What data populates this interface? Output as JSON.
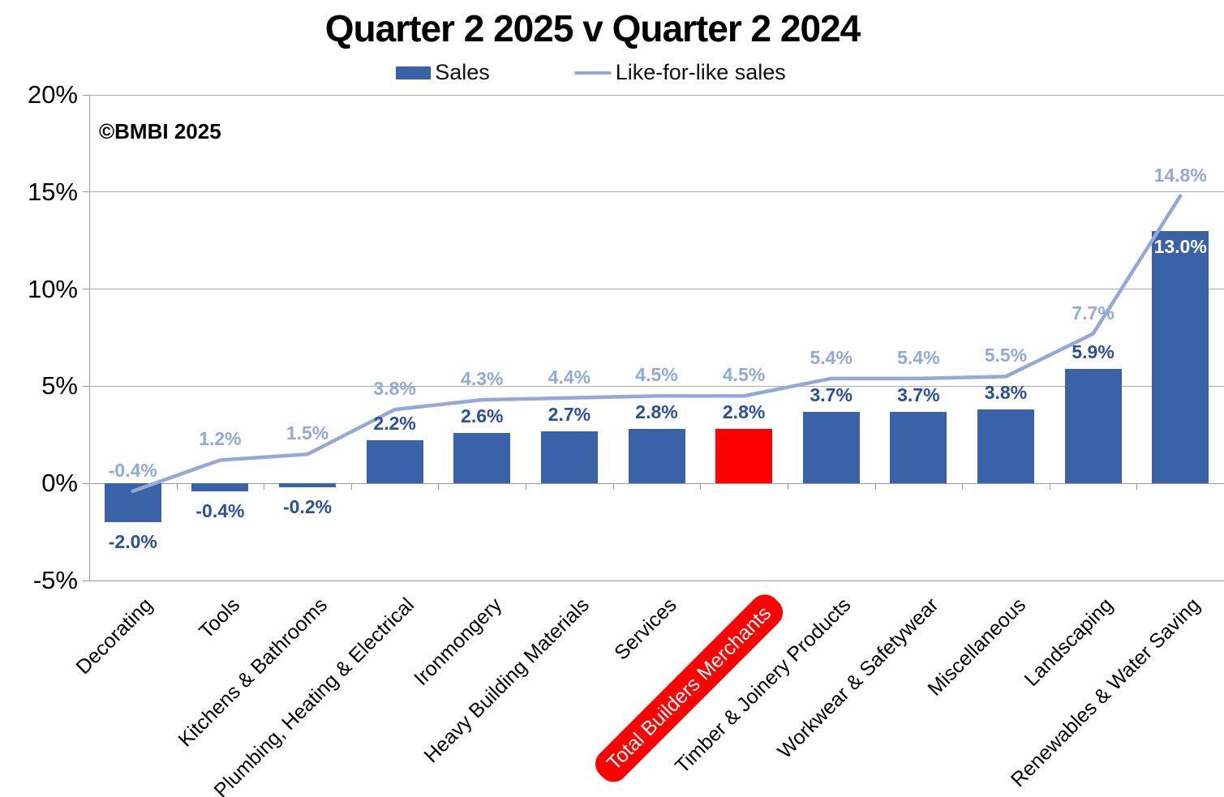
{
  "title": "Quarter 2 2025 v Quarter 2 2024",
  "copyright": "©BMBI 2025",
  "legend": [
    {
      "label": "Sales",
      "swatch": "bar",
      "color": "#3A62A8"
    },
    {
      "label": "Like-for-like sales",
      "swatch": "line",
      "color": "#94A9D9"
    }
  ],
  "chart_data": {
    "type": "bar",
    "title": "Quarter 2 2025 v Quarter 2 2024",
    "categories": [
      "Decorating",
      "Tools",
      "Kitchens & Bathrooms",
      "Plumbing, Heating & Electrical",
      "Ironmongery",
      "Heavy Building Materials",
      "Services",
      "Total Builders Merchants",
      "Timber & Joinery Products",
      "Workwear & Safetywear",
      "Miscellaneous",
      "Landscaping",
      "Renewables & Water Saving"
    ],
    "series": [
      {
        "name": "Sales",
        "type": "bar",
        "color": "#3A62A8",
        "label_color": "#2B4F9E",
        "values": [
          -2.0,
          -0.4,
          -0.2,
          2.2,
          2.6,
          2.7,
          2.8,
          2.8,
          3.7,
          3.7,
          3.8,
          5.9,
          13.0
        ],
        "labels": [
          "-2.0%",
          "-0.4%",
          "-0.2%",
          "2.2%",
          "2.6%",
          "2.7%",
          "2.8%",
          "2.8%",
          "3.7%",
          "3.7%",
          "3.8%",
          "5.9%",
          "13.0%"
        ]
      },
      {
        "name": "Like-for-like sales",
        "type": "line",
        "color": "#94A9D9",
        "label_color": "#93A9D9",
        "values": [
          -0.4,
          1.2,
          1.5,
          3.8,
          4.3,
          4.4,
          4.5,
          4.5,
          5.4,
          5.4,
          5.5,
          7.7,
          14.8
        ],
        "labels": [
          "-0.4%",
          "1.2%",
          "1.5%",
          "3.8%",
          "4.3%",
          "4.4%",
          "4.5%",
          "4.5%",
          "5.4%",
          "5.4%",
          "5.5%",
          "7.7%",
          "14.8%"
        ]
      }
    ],
    "ylim": [
      -5,
      20
    ],
    "yticks": [
      {
        "v": 20,
        "label": "20%"
      },
      {
        "v": 15,
        "label": "15%"
      },
      {
        "v": 10,
        "label": "10%"
      },
      {
        "v": 5,
        "label": "5%"
      },
      {
        "v": 0,
        "label": "0%"
      },
      {
        "v": -5,
        "label": "-5%"
      }
    ],
    "grid": true,
    "legend_position": "top",
    "highlight": {
      "index": 7,
      "category": "Total Builders Merchants",
      "bar_color": "#FF0000",
      "label_bg": "#FF0000",
      "label_text": "#FFFFFF"
    },
    "inside_label_index": 12,
    "inside_label_color": "#FFFFFF",
    "grid_color": "#ADADAD",
    "axis_color": "#999999"
  }
}
